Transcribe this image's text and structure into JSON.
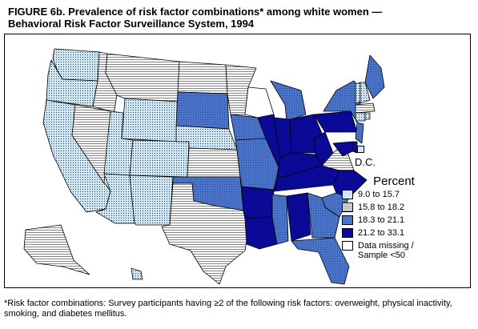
{
  "title": {
    "line1": "FIGURE 6b. Prevalence of risk factor combinations* among white women —",
    "line2": "Behavioral Risk Factor Surveillance System, 1994"
  },
  "legend": {
    "title": "Percent",
    "items": [
      {
        "label": "9.0 to 15.7",
        "pattern": "dots"
      },
      {
        "label": "15.8 to 18.2",
        "pattern": "lines"
      },
      {
        "label": "18.3 to 21.1",
        "pattern": "medium"
      },
      {
        "label": "21.2 to 33.1",
        "pattern": "dark"
      },
      {
        "label": "Data missing / Sample <50",
        "pattern": "white"
      }
    ]
  },
  "dc_label": "D.C.",
  "footnote": "*Risk factor combinations: Survey participants having ≥2 of the following risk factors: overweight, physical inactivity, smoking, and diabetes mellitus.",
  "colors": {
    "dots_fill": "#cfe8f8",
    "lines_fill": "#ffffff",
    "medium_fill": "#4a74c8",
    "dark_fill": "#0a0a96",
    "white_fill": "#ffffff"
  },
  "state_categories": {
    "WA": "dots",
    "OR": "dots",
    "CA": "dots",
    "ID": "lines",
    "NV": "lines",
    "UT": "dots",
    "AZ": "dots",
    "MT": "lines",
    "WY": "dots",
    "CO": "dots",
    "NM": "dots",
    "ND": "lines",
    "SD": "medium",
    "NE": "dots",
    "KS": "lines",
    "OK": "medium",
    "TX": "lines",
    "MN": "lines",
    "IA": "medium",
    "MO": "medium",
    "AR": "dark",
    "LA": "dark",
    "WI": "white",
    "IL": "dark",
    "MS": "medium",
    "MI": "medium",
    "IN": "dark",
    "KY": "dark",
    "TN": "dark",
    "AL": "dark",
    "OH": "dark",
    "WV": "dark",
    "VA": "lines",
    "NC": "dark",
    "SC": "medium",
    "GA": "medium",
    "FL": "medium",
    "PA": "dark",
    "NY": "medium",
    "ME": "medium",
    "VT": "dots",
    "NH": "dots",
    "MA": "lines",
    "CT": "dots",
    "RI": "dots",
    "NJ": "medium",
    "DE": "dark",
    "MD": "dark",
    "DC": "dots",
    "AK": "lines",
    "HI": "dots"
  }
}
